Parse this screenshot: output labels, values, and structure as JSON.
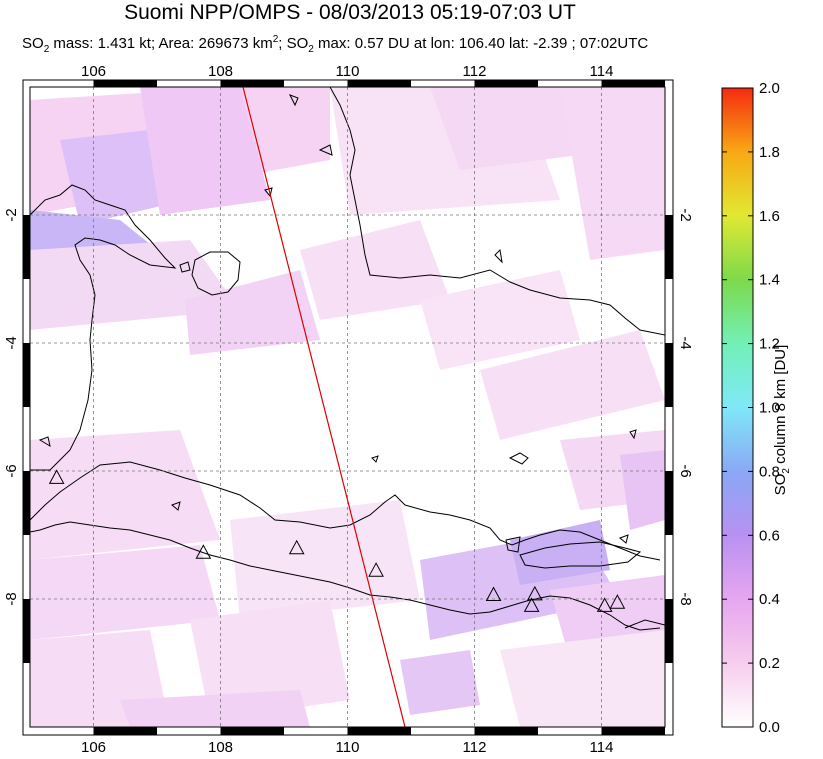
{
  "title": "Suomi NPP/OMPS - 08/03/2013 05:19-07:03 UT",
  "subtitle": {
    "p1": "SO",
    "p1sub": "2",
    "p2": " mass: 1.431 kt; Area: 269673 km",
    "p2sup": "2",
    "p3": "; SO",
    "p3sub": "2",
    "p4": " max: 0.57 DU at lon: 106.40 lat: -2.39 ; 07:02UTC"
  },
  "map": {
    "lon_range": [
      105,
      115
    ],
    "lat_range": [
      -10,
      0
    ],
    "lon_ticks": [
      "106",
      "108",
      "110",
      "112",
      "114"
    ],
    "lat_ticks_left": [
      "-2",
      "-4",
      "-6",
      "-8"
    ],
    "lat_ticks_right": [
      "-2",
      "-4",
      "-6",
      "-8"
    ],
    "grid": "dashed",
    "orbit_track": {
      "color": "#dd0000"
    },
    "volcano_marker": "triangle-icon",
    "volcanoes": [
      {
        "lon": 105.42,
        "lat": -6.1
      },
      {
        "lon": 107.73,
        "lat": -7.27
      },
      {
        "lon": 109.2,
        "lat": -7.2
      },
      {
        "lon": 110.45,
        "lat": -7.55
      },
      {
        "lon": 112.3,
        "lat": -7.93
      },
      {
        "lon": 112.95,
        "lat": -7.92
      },
      {
        "lon": 112.9,
        "lat": -8.1
      },
      {
        "lon": 114.05,
        "lat": -8.1
      },
      {
        "lon": 114.25,
        "lat": -8.05
      }
    ]
  },
  "colorbar": {
    "label_main": "SO",
    "label_sub": "2",
    "label_rest": " column 8 km [DU]",
    "ticks": [
      "0.0",
      "0.2",
      "0.4",
      "0.6",
      "0.8",
      "1.0",
      "1.2",
      "1.4",
      "1.6",
      "1.8",
      "2.0"
    ],
    "colors": [
      "#ffffff",
      "#f7cdee",
      "#e6a6f0",
      "#b891f2",
      "#8aa8f5",
      "#7fe8f8",
      "#72f0b7",
      "#7ed94b",
      "#e1e832",
      "#f8a814",
      "#f52b10"
    ],
    "range": [
      0,
      2
    ]
  }
}
